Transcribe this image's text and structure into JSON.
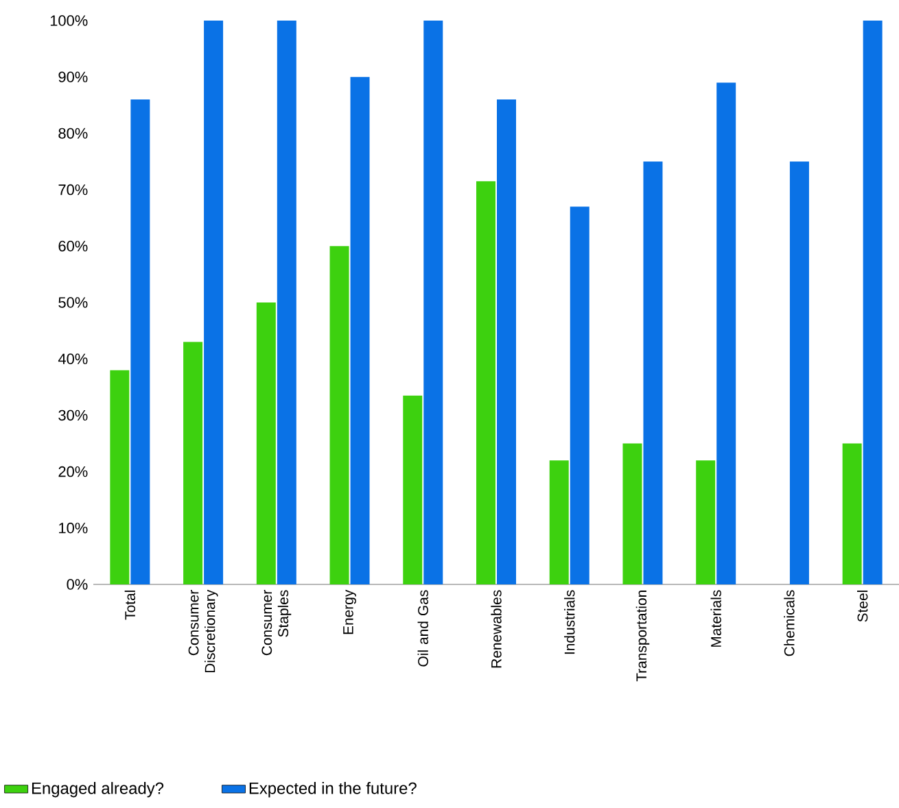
{
  "chart_data": {
    "type": "bar",
    "categories": [
      "Total",
      "Consumer Discretionary",
      "Consumer Staples",
      "Energy",
      "Oil and Gas",
      "Renewables",
      "Industrials",
      "Transportation",
      "Materials",
      "Chemicals",
      "Steel"
    ],
    "series": [
      {
        "name": "Engaged already?",
        "color": "#3dd10f",
        "values": [
          38,
          43,
          50,
          60,
          33.5,
          71.5,
          22,
          25,
          22,
          null,
          25
        ]
      },
      {
        "name": "Expected in the future?",
        "color": "#0a72e6",
        "values": [
          86,
          100,
          100,
          90,
          100,
          86,
          67,
          75,
          89,
          75,
          100
        ]
      }
    ],
    "ylim": [
      0,
      100
    ],
    "yticks": [
      {
        "value": 0,
        "label": "0%"
      },
      {
        "value": 10,
        "label": "10%"
      },
      {
        "value": 20,
        "label": "20%"
      },
      {
        "value": 30,
        "label": "30%"
      },
      {
        "value": 40,
        "label": "40%"
      },
      {
        "value": 50,
        "label": "50%"
      },
      {
        "value": 60,
        "label": "60%"
      },
      {
        "value": 70,
        "label": "70%"
      },
      {
        "value": 80,
        "label": "80%"
      },
      {
        "value": 90,
        "label": "90%"
      },
      {
        "value": 100,
        "label": "100%"
      }
    ],
    "grid": false,
    "legend": "bottom"
  }
}
